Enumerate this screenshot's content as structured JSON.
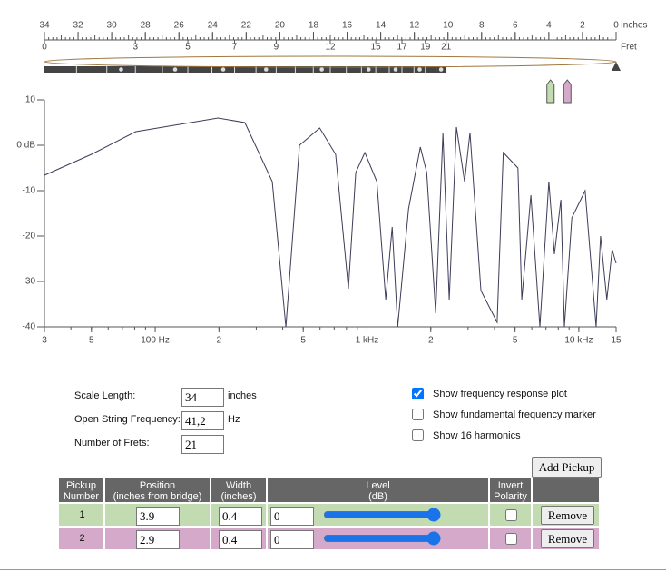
{
  "ruler": {
    "inches_label": "Inches",
    "fret_label": "Fret",
    "inch_ticks": [
      34,
      32,
      30,
      28,
      26,
      24,
      22,
      20,
      18,
      16,
      14,
      12,
      10,
      8,
      6,
      4,
      2,
      0
    ],
    "fret_ticks": [
      0,
      3,
      5,
      7,
      9,
      12,
      15,
      17,
      19,
      21
    ]
  },
  "plot": {
    "type": "line",
    "log_x": true,
    "xlim": [
      30,
      15000
    ],
    "ylim": [
      -40,
      10
    ],
    "xticks": [
      {
        "value": 30,
        "label": "3"
      },
      {
        "value": 50,
        "label": "5"
      },
      {
        "value": 100,
        "label": "100 Hz"
      },
      {
        "value": 200,
        "label": "2"
      },
      {
        "value": 500,
        "label": "5"
      },
      {
        "value": 1000,
        "label": "1 kHz"
      },
      {
        "value": 2000,
        "label": "2"
      },
      {
        "value": 5000,
        "label": "5"
      },
      {
        "value": 10000,
        "label": "10 kHz"
      },
      {
        "value": 15000,
        "label": "15"
      }
    ],
    "yticks": [
      10,
      {
        "value": 0,
        "label": "0 dB"
      },
      -10,
      -20,
      -30,
      -40
    ],
    "curve": {
      "color": "#3c3c58",
      "x": [
        30,
        50,
        81,
        198,
        265,
        357,
        414,
        480,
        598,
        711,
        817,
        885,
        977,
        1113,
        1226,
        1315,
        1396,
        1571,
        1786,
        1914,
        2110,
        2283,
        2445,
        2644,
        2889,
        3064,
        3450,
        4115,
        4400,
        5160,
        5380,
        5940,
        6550,
        7220,
        7670,
        8230,
        8550,
        9270,
        10710,
        12070,
        12670,
        13560,
        14370,
        15000
      ],
      "y": [
        -6.6,
        -2,
        3,
        6,
        5,
        -8,
        -40,
        0,
        3.8,
        -2,
        -31.6,
        -6,
        -1.6,
        -8,
        -34,
        -18,
        -40,
        -14,
        -0.4,
        -6,
        -37,
        2.6,
        -34,
        4,
        -8,
        2.8,
        -32,
        -39,
        -1.6,
        -5,
        -34,
        -11,
        -40,
        -8,
        -24,
        -12,
        -40,
        -16,
        -10,
        -40,
        -20,
        -34,
        -23,
        -26
      ]
    }
  },
  "settings": {
    "scale_length_label": "Scale Length:",
    "scale_length": "34",
    "scale_length_unit": "inches",
    "open_freq_label": "Open String Frequency:",
    "open_freq": "41,2",
    "open_freq_unit": "Hz",
    "frets_label": "Number of Frets:",
    "frets": "21"
  },
  "options": [
    {
      "label": "Show frequency response plot",
      "checked": true
    },
    {
      "label": "Show fundamental frequency marker",
      "checked": false
    },
    {
      "label": "Show 16 harmonics",
      "checked": false
    }
  ],
  "add_pickup": "Add Pickup",
  "table": {
    "headers": [
      [
        "Pickup",
        "Number"
      ],
      [
        "Position",
        "(inches from bridge)"
      ],
      [
        "Width",
        "(inches)"
      ],
      [
        "Level",
        "(dB)"
      ],
      [
        "Invert",
        "Polarity"
      ]
    ],
    "rows": [
      {
        "number": "1",
        "position": "3.9",
        "width": "0.4",
        "level": "0",
        "invert": false,
        "color": "#c3dbb1"
      },
      {
        "number": "2",
        "position": "2.9",
        "width": "0.4",
        "level": "0",
        "invert": false,
        "color": "#d5a9c9"
      }
    ],
    "remove": "Remove"
  }
}
